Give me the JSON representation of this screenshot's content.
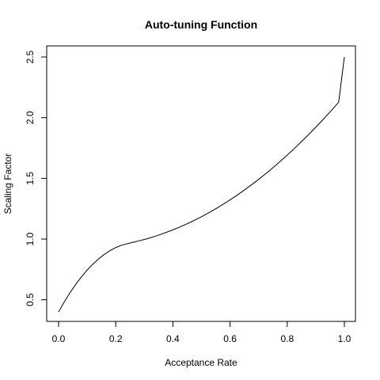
{
  "chart_data": {
    "type": "line",
    "title": "Auto-tuning Function",
    "xlabel": "Acceptance Rate",
    "ylabel": "Scaling Factor",
    "xlim": [
      0.0,
      1.0
    ],
    "ylim": [
      0.4,
      2.5
    ],
    "xticks": [
      0.0,
      0.2,
      0.4,
      0.6,
      0.8,
      1.0
    ],
    "xtick_labels": [
      "0.0",
      "0.2",
      "0.4",
      "0.6",
      "0.8",
      "1.0"
    ],
    "yticks": [
      0.5,
      1.0,
      1.5,
      2.0,
      2.5
    ],
    "ytick_labels": [
      "0.5",
      "1.0",
      "1.5",
      "2.0",
      "2.5"
    ],
    "grid": false,
    "series": [
      {
        "color": "#000000",
        "x": [
          0.0,
          0.02,
          0.04,
          0.06,
          0.08,
          0.1,
          0.12,
          0.14,
          0.16,
          0.18,
          0.2,
          0.22,
          0.24,
          0.26,
          0.28,
          0.3,
          0.32,
          0.34,
          0.36,
          0.38,
          0.4,
          0.42,
          0.44,
          0.46,
          0.48,
          0.5,
          0.52,
          0.54,
          0.56,
          0.58,
          0.6,
          0.62,
          0.64,
          0.66,
          0.68,
          0.7,
          0.72,
          0.74,
          0.76,
          0.78,
          0.8,
          0.82,
          0.84,
          0.86,
          0.88,
          0.9,
          0.92,
          0.94,
          0.96,
          0.98,
          1.0
        ],
        "y": [
          0.4,
          0.483,
          0.558,
          0.627,
          0.689,
          0.745,
          0.794,
          0.837,
          0.874,
          0.905,
          0.93,
          0.949,
          0.962,
          0.973,
          0.985,
          0.997,
          1.01,
          1.025,
          1.041,
          1.058,
          1.076,
          1.095,
          1.116,
          1.137,
          1.16,
          1.184,
          1.21,
          1.236,
          1.264,
          1.293,
          1.323,
          1.354,
          1.387,
          1.421,
          1.456,
          1.492,
          1.53,
          1.568,
          1.608,
          1.649,
          1.692,
          1.735,
          1.78,
          1.826,
          1.873,
          1.922,
          1.971,
          2.022,
          2.074,
          2.127,
          2.5
        ]
      }
    ]
  }
}
